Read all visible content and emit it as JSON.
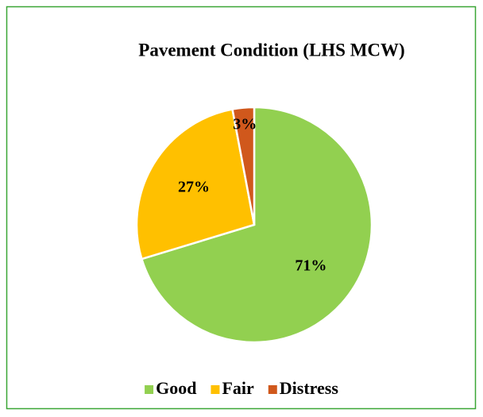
{
  "chart_data": {
    "type": "pie",
    "title": "Pavement Condition (LHS MCW)",
    "categories": [
      "Good",
      "Fair",
      "Distress"
    ],
    "values": [
      71,
      27,
      3
    ],
    "value_labels": [
      "71%",
      "27%",
      "3%"
    ],
    "colors": [
      "#92d050",
      "#ffc000",
      "#d0581c"
    ],
    "legend": "bottom"
  }
}
